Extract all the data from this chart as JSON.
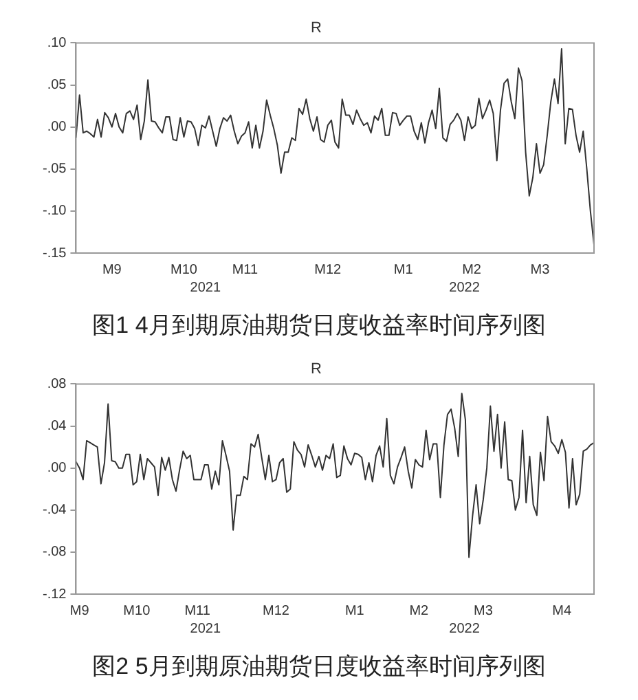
{
  "chart_data": [
    {
      "type": "line",
      "title": "R",
      "marker": "none",
      "grid": false,
      "legend": false,
      "categories": [
        null,
        null,
        null,
        null,
        null,
        null,
        null,
        null,
        null,
        null,
        "M9",
        null,
        null,
        null,
        null,
        null,
        null,
        null,
        null,
        null,
        null,
        null,
        null,
        null,
        null,
        null,
        null,
        null,
        null,
        null,
        "M10",
        null,
        null,
        null,
        null,
        null,
        null,
        null,
        null,
        null,
        null,
        null,
        null,
        null,
        null,
        null,
        null,
        "M11",
        null,
        null,
        null,
        null,
        null,
        null,
        null,
        null,
        null,
        null,
        null,
        null,
        null,
        null,
        null,
        null,
        null,
        null,
        null,
        null,
        null,
        null,
        "M12",
        null,
        null,
        null,
        null,
        null,
        null,
        null,
        null,
        null,
        null,
        null,
        null,
        null,
        null,
        null,
        null,
        null,
        null,
        null,
        null,
        "M1",
        null,
        null,
        null,
        null,
        null,
        null,
        null,
        null,
        null,
        null,
        null,
        null,
        null,
        null,
        null,
        null,
        null,
        null,
        "M2",
        null,
        null,
        null,
        null,
        null,
        null,
        null,
        null,
        null,
        null,
        null,
        null,
        null,
        null,
        null,
        null,
        null,
        null,
        "M3",
        null,
        null,
        null,
        null,
        null,
        null,
        null,
        null,
        null,
        null,
        null,
        null,
        null,
        null,
        null
      ],
      "series": [
        {
          "color": "#333333",
          "values": [
            -0.013,
            0.038,
            -0.007,
            -0.005,
            -0.008,
            -0.012,
            0.009,
            -0.012,
            0.017,
            0.011,
            0,
            0.016,
            0,
            -0.007,
            0.016,
            0.019,
            0.009,
            0.026,
            -0.015,
            0.007,
            0.056,
            0.007,
            0.006,
            -0.001,
            -0.007,
            0.012,
            0.012,
            -0.015,
            -0.016,
            0.011,
            -0.012,
            0.007,
            0.006,
            -0.002,
            -0.022,
            0.002,
            -0.001,
            0.013,
            -0.005,
            -0.023,
            -0.002,
            0.011,
            0.007,
            0.014,
            -0.005,
            -0.02,
            -0.011,
            -0.007,
            0.006,
            -0.025,
            0.002,
            -0.025,
            -0.005,
            0.032,
            0.014,
            -0.002,
            -0.022,
            -0.055,
            -0.03,
            -0.03,
            -0.013,
            -0.016,
            0.022,
            0.015,
            0.033,
            0.01,
            -0.005,
            0.012,
            -0.015,
            -0.018,
            0.002,
            0.008,
            -0.018,
            -0.025,
            0.033,
            0.014,
            0.014,
            0.003,
            0.02,
            0.01,
            0.002,
            0.005,
            -0.007,
            0.013,
            0.008,
            0.022,
            -0.01,
            -0.01,
            0.017,
            0.016,
            0.002,
            0.008,
            0.013,
            0.013,
            -0.005,
            -0.015,
            0.005,
            -0.019,
            0.005,
            0.02,
            -0.002,
            0.046,
            -0.013,
            -0.017,
            0.003,
            0.008,
            0.016,
            0.008,
            -0.016,
            0.012,
            -0.002,
            0.002,
            0.034,
            0.01,
            0.02,
            0.032,
            0.016,
            -0.04,
            0.02,
            0.052,
            0.057,
            0.03,
            0.01,
            0.07,
            0.055,
            -0.03,
            -0.082,
            -0.06,
            -0.02,
            -0.055,
            -0.045,
            -0.01,
            0.03,
            0.057,
            0.028,
            0.093,
            -0.02,
            0.022,
            0.021,
            -0.01,
            -0.03,
            -0.005,
            -0.05,
            -0.1,
            -0.14
          ]
        }
      ],
      "ylim": [
        -0.15,
        0.1
      ],
      "yticks": [
        {
          "value": -0.15,
          "label": "-.15"
        },
        {
          "value": -0.1,
          "label": "-.10"
        },
        {
          "value": -0.05,
          "label": "-.05"
        },
        {
          "value": 0,
          "label": ".00"
        },
        {
          "value": 0.05,
          "label": ".05"
        },
        {
          "value": 0.1,
          "label": ".10"
        }
      ],
      "annotations": [
        "2021",
        "2022",
        "图1  4月到期原油期货日度收益率时间序列图"
      ]
    },
    {
      "type": "line",
      "title": "R",
      "marker": "none",
      "grid": false,
      "legend": false,
      "categories": [
        null,
        "M9",
        null,
        null,
        null,
        null,
        null,
        null,
        null,
        null,
        null,
        null,
        null,
        null,
        null,
        null,
        null,
        "M10",
        null,
        null,
        null,
        null,
        null,
        null,
        null,
        null,
        null,
        null,
        null,
        null,
        null,
        null,
        null,
        null,
        "M11",
        null,
        null,
        null,
        null,
        null,
        null,
        null,
        null,
        null,
        null,
        null,
        null,
        null,
        null,
        null,
        null,
        null,
        null,
        null,
        null,
        null,
        "M12",
        null,
        null,
        null,
        null,
        null,
        null,
        null,
        null,
        null,
        null,
        null,
        null,
        null,
        null,
        null,
        null,
        null,
        null,
        null,
        null,
        null,
        "M1",
        null,
        null,
        null,
        null,
        null,
        null,
        null,
        null,
        null,
        null,
        null,
        null,
        null,
        null,
        null,
        null,
        null,
        "M2",
        null,
        null,
        null,
        null,
        null,
        null,
        null,
        null,
        null,
        null,
        null,
        null,
        null,
        null,
        null,
        null,
        null,
        "M3",
        null,
        null,
        null,
        null,
        null,
        null,
        null,
        null,
        null,
        null,
        null,
        null,
        null,
        null,
        null,
        null,
        null,
        null,
        null,
        null,
        null,
        "M4",
        null,
        null,
        null,
        null,
        null,
        null,
        null,
        null,
        null
      ],
      "series": [
        {
          "color": "#333333",
          "values": [
            0.006,
            0,
            -0.011,
            0.026,
            0.024,
            0.022,
            0.02,
            -0.015,
            0.005,
            0.061,
            0.007,
            0.006,
            0,
            0,
            0.013,
            0.013,
            -0.016,
            -0.013,
            0.013,
            -0.011,
            0.009,
            0.005,
            0.001,
            -0.026,
            0.01,
            -0.002,
            0.01,
            -0.011,
            -0.022,
            -0.002,
            0.016,
            0.009,
            0.012,
            -0.011,
            -0.011,
            -0.011,
            0.003,
            0.003,
            -0.02,
            -0.003,
            -0.016,
            0.026,
            0.012,
            -0.003,
            -0.059,
            -0.026,
            -0.026,
            -0.008,
            -0.011,
            0.023,
            0.02,
            0.032,
            0.01,
            -0.011,
            0.012,
            -0.013,
            -0.011,
            0.005,
            0.009,
            -0.023,
            -0.02,
            0.025,
            0.017,
            0.013,
            0.001,
            0.022,
            0.012,
            0.001,
            0.011,
            -0.002,
            0.012,
            0.009,
            0.023,
            -0.009,
            -0.007,
            0.021,
            0.009,
            0.003,
            0.014,
            0.013,
            0.01,
            -0.011,
            0.005,
            -0.013,
            0.012,
            0.021,
            0.001,
            0.047,
            -0.007,
            -0.015,
            0.001,
            0.01,
            0.02,
            -0.003,
            -0.019,
            0.008,
            0.003,
            0.001,
            0.036,
            0.008,
            0.023,
            0.023,
            -0.028,
            0.022,
            0.051,
            0.056,
            0.038,
            0.011,
            0.071,
            0.046,
            -0.085,
            -0.046,
            -0.016,
            -0.053,
            -0.03,
            0,
            0.059,
            0.016,
            0.051,
            0,
            0.044,
            -0.011,
            -0.012,
            -0.04,
            -0.028,
            0.036,
            -0.033,
            0.011,
            -0.035,
            -0.045,
            0.015,
            -0.012,
            0.049,
            0.025,
            0.021,
            0.014,
            0.027,
            0.015,
            -0.038,
            0.009,
            -0.035,
            -0.025,
            0.016,
            0.018,
            0.022,
            0.024
          ]
        }
      ],
      "ylim": [
        -0.12,
        0.08
      ],
      "yticks": [
        {
          "value": -0.12,
          "label": "-.12"
        },
        {
          "value": -0.08,
          "label": "-.08"
        },
        {
          "value": -0.04,
          "label": "-.04"
        },
        {
          "value": 0,
          "label": ".00"
        },
        {
          "value": 0.04,
          "label": ".04"
        },
        {
          "value": 0.08,
          "label": ".08"
        }
      ],
      "annotations": [
        "2021",
        "2022",
        "图2  5月到期原油期货日度收益率时间序列图"
      ]
    }
  ]
}
